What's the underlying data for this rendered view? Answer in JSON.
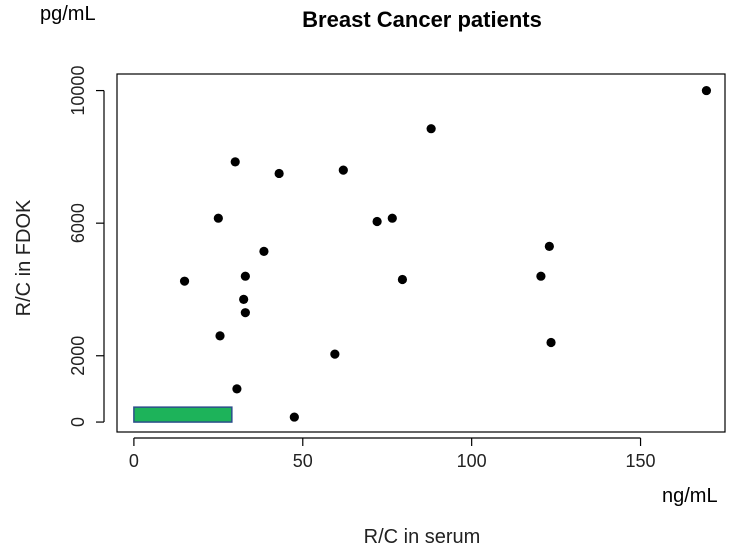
{
  "chart_data": {
    "type": "scatter",
    "title": "Breast Cancer patients",
    "xlabel": "R/C in serum",
    "ylabel": "R/C in FDOK",
    "x_unit": "ng/mL",
    "y_unit": "pg/mL",
    "xlim": [
      -5,
      175
    ],
    "ylim": [
      -300,
      10500
    ],
    "x_ticks": [
      0,
      50,
      100,
      150
    ],
    "y_ticks": [
      0,
      2000,
      6000,
      10000
    ],
    "x_tick_labels": [
      "0",
      "50",
      "100",
      "150"
    ],
    "y_tick_labels": [
      "0",
      "2000",
      "6000",
      "10000"
    ],
    "grid": false,
    "reference_box": {
      "x0": 0,
      "x1": 29,
      "y0": 0,
      "y1": 450,
      "fill": "#1db35a",
      "stroke": "#2c4f8a"
    },
    "points": [
      {
        "x": 15,
        "y": 4250
      },
      {
        "x": 25,
        "y": 6150
      },
      {
        "x": 25.5,
        "y": 2600
      },
      {
        "x": 30,
        "y": 7850
      },
      {
        "x": 30.5,
        "y": 1000
      },
      {
        "x": 32.5,
        "y": 3700
      },
      {
        "x": 33,
        "y": 4400
      },
      {
        "x": 33,
        "y": 3300
      },
      {
        "x": 38.5,
        "y": 5150
      },
      {
        "x": 43,
        "y": 7500
      },
      {
        "x": 47.5,
        "y": 150
      },
      {
        "x": 59.5,
        "y": 2050
      },
      {
        "x": 62,
        "y": 7600
      },
      {
        "x": 72,
        "y": 6050
      },
      {
        "x": 76.5,
        "y": 6150
      },
      {
        "x": 79.5,
        "y": 4300
      },
      {
        "x": 88,
        "y": 8850
      },
      {
        "x": 120.5,
        "y": 4400
      },
      {
        "x": 123,
        "y": 5300
      },
      {
        "x": 123.5,
        "y": 2400
      },
      {
        "x": 169.5,
        "y": 10000
      }
    ],
    "point_color": "#000000"
  }
}
